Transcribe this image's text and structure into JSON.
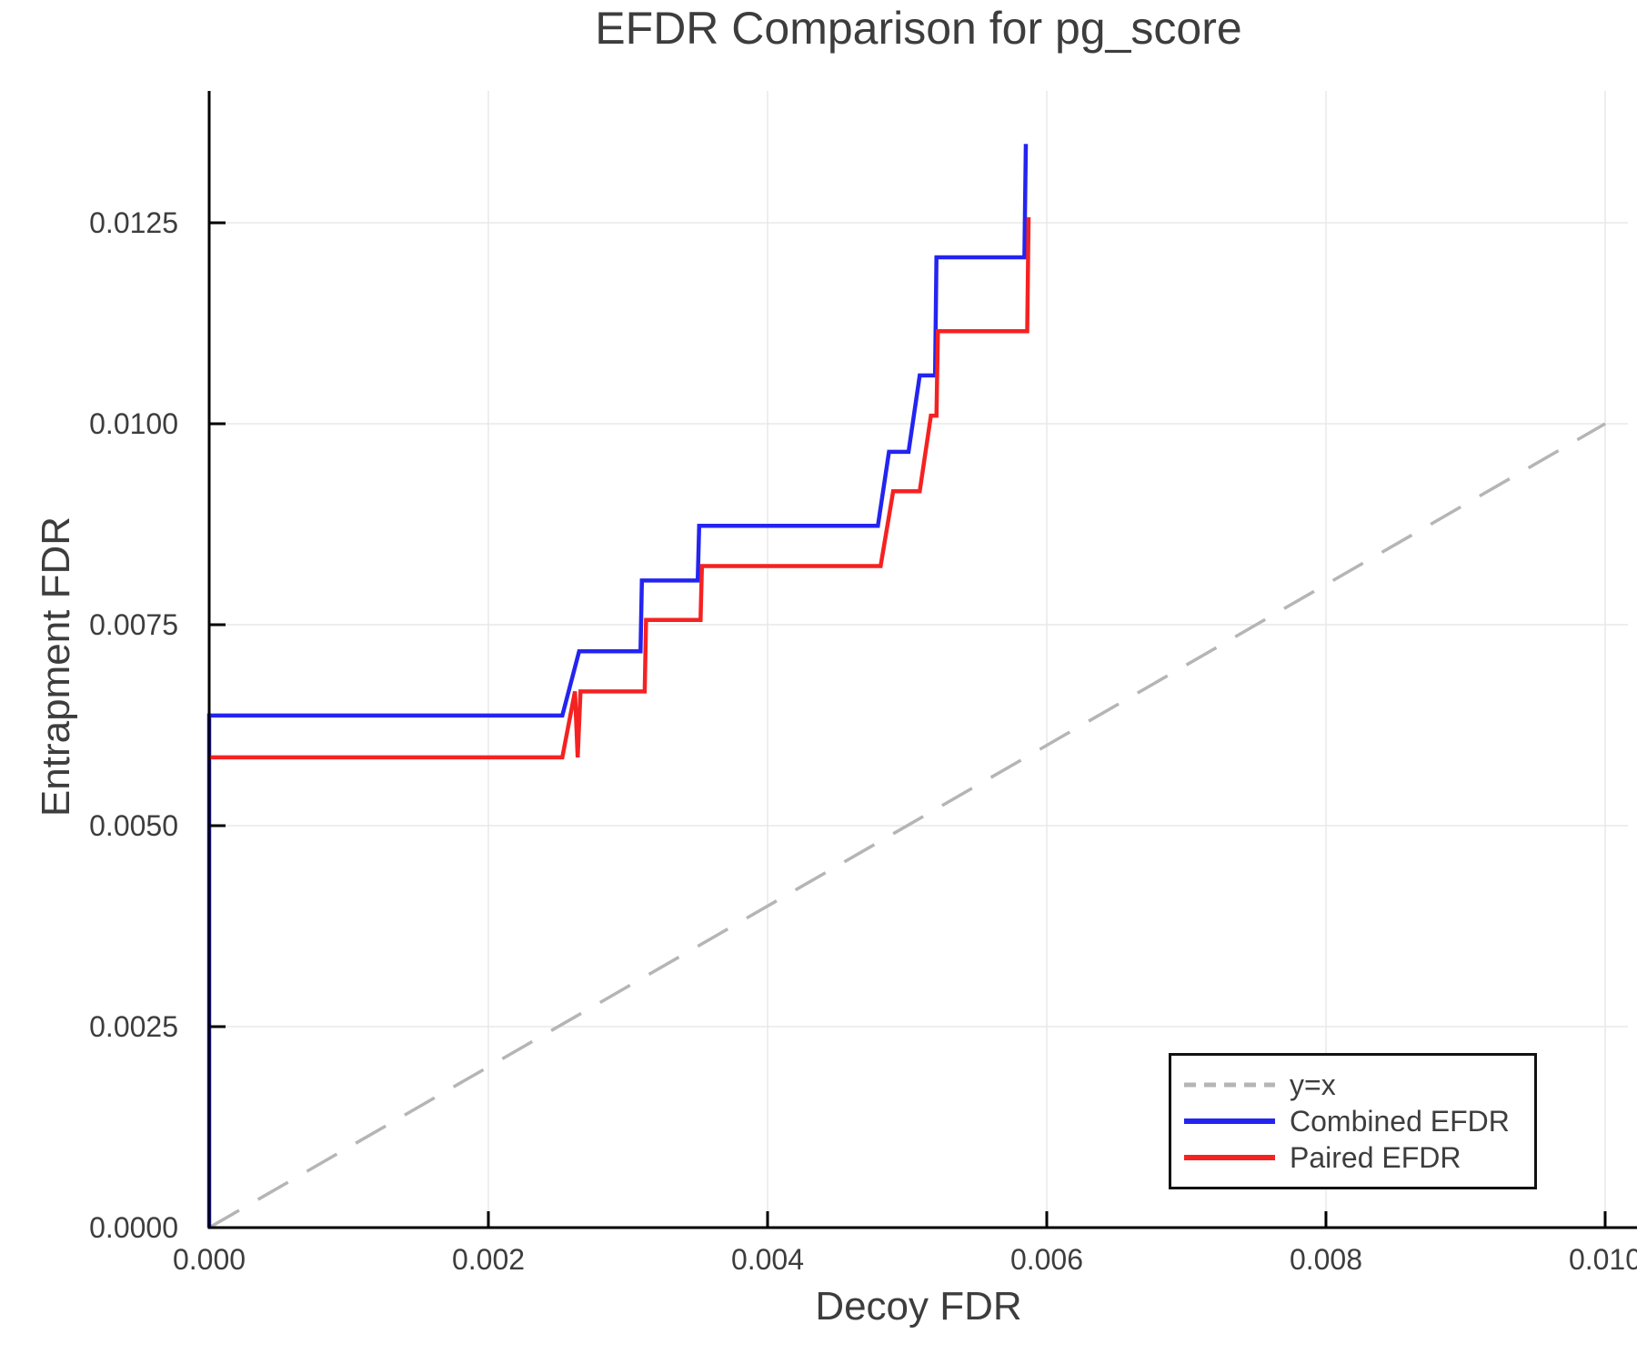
{
  "title": "EFDR Comparison for pg_score",
  "axes": {
    "xlabel": "Decoy FDR",
    "ylabel": "Entrapment FDR",
    "xlim": [
      0.0,
      0.010163
    ],
    "ylim": [
      0.0,
      0.01414
    ],
    "x_ticks": [
      {
        "value": 0.0,
        "label": "0.000"
      },
      {
        "value": 0.002,
        "label": "0.002"
      },
      {
        "value": 0.004,
        "label": "0.004"
      },
      {
        "value": 0.006,
        "label": "0.006"
      },
      {
        "value": 0.008,
        "label": "0.008"
      },
      {
        "value": 0.01,
        "label": "0.010"
      }
    ],
    "y_ticks": [
      {
        "value": 0.0,
        "label": "0.0000"
      },
      {
        "value": 0.0025,
        "label": "0.0025"
      },
      {
        "value": 0.005,
        "label": "0.0050"
      },
      {
        "value": 0.0075,
        "label": "0.0075"
      },
      {
        "value": 0.01,
        "label": "0.0100"
      },
      {
        "value": 0.0125,
        "label": "0.0125"
      }
    ],
    "grid": true,
    "tick_color": "#3d3d3d",
    "spine_color": "#000000",
    "grid_color": "#e8e8e8"
  },
  "legend": {
    "position": "bottom-right",
    "items": [
      {
        "label": "y=x",
        "color": "#b5b5b5",
        "dash": true
      },
      {
        "label": "Combined EFDR",
        "color": "#2424f0",
        "dash": false
      },
      {
        "label": "Paired EFDR",
        "color": "#f52222",
        "dash": false
      }
    ]
  },
  "chart_data": {
    "type": "line",
    "title": "EFDR Comparison for pg_score",
    "xlabel": "Decoy FDR",
    "ylabel": "Entrapment FDR",
    "xlim": [
      0.0,
      0.010163
    ],
    "ylim": [
      0.0,
      0.01414
    ],
    "legend_position": "bottom-right",
    "grid": true,
    "series": [
      {
        "name": "y=x",
        "color": "#b5b5b5",
        "dash": true,
        "width": 3.5,
        "x": [
          0.0,
          0.01
        ],
        "y": [
          0.0,
          0.01
        ]
      },
      {
        "name": "Combined EFDR",
        "color": "#2424f0",
        "dash": false,
        "width": 4.5,
        "x": [
          0.0,
          0.0,
          0.00253,
          0.00265,
          0.00309,
          0.0031,
          0.0035,
          0.00351,
          0.00479,
          0.00487,
          0.00501,
          0.00509,
          0.0052,
          0.00521,
          0.00584,
          0.00585
        ],
        "y": [
          0.0,
          0.00637,
          0.00637,
          0.00717,
          0.00717,
          0.00805,
          0.00805,
          0.00873,
          0.00873,
          0.00965,
          0.00965,
          0.0106,
          0.0106,
          0.01207,
          0.01207,
          0.01348
        ]
      },
      {
        "name": "Paired EFDR",
        "color": "#f52222",
        "dash": false,
        "width": 4.5,
        "x": [
          0.0,
          0.00253,
          0.00262,
          0.00264,
          0.00266,
          0.00312,
          0.00313,
          0.00352,
          0.00353,
          0.00481,
          0.0049,
          0.00509,
          0.00517,
          0.00521,
          0.00522,
          0.00586,
          0.00587
        ],
        "y": [
          0.00585,
          0.00585,
          0.00667,
          0.00585,
          0.00667,
          0.00667,
          0.00756,
          0.00756,
          0.00823,
          0.00823,
          0.00916,
          0.00916,
          0.0101,
          0.0101,
          0.01115,
          0.01115,
          0.01257
        ]
      }
    ]
  }
}
